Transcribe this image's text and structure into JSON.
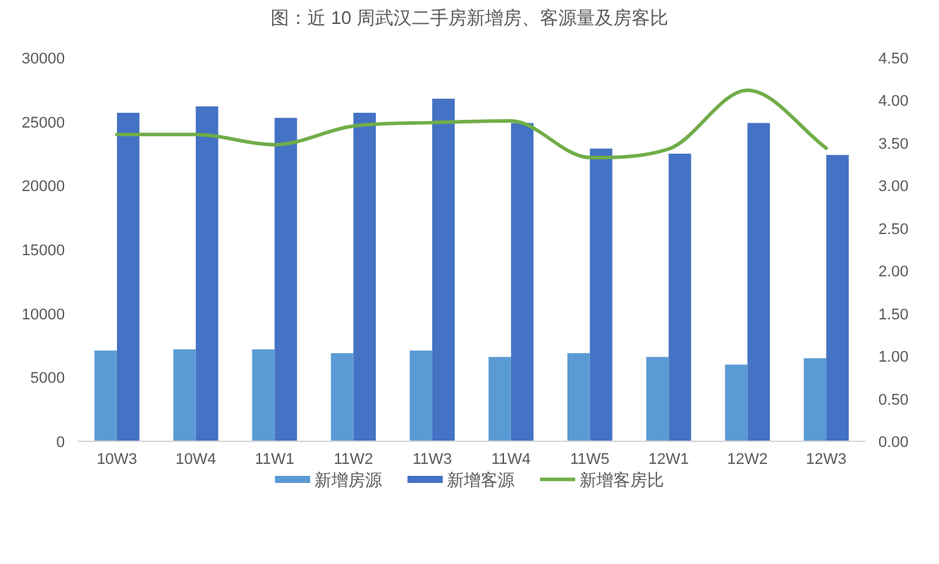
{
  "chart_data": {
    "type": "bar",
    "title": "图：近 10 周武汉二手房新增房、客源量及房客比",
    "categories": [
      "10W3",
      "10W4",
      "11W1",
      "11W2",
      "11W3",
      "11W4",
      "11W5",
      "12W1",
      "12W2",
      "12W3"
    ],
    "series": [
      {
        "name": "新增房源",
        "color": "#5b9bd5",
        "values": [
          7100,
          7200,
          7200,
          6900,
          7100,
          6600,
          6900,
          6600,
          6000,
          6500
        ]
      },
      {
        "name": "新增客源",
        "color": "#4472c4",
        "values": [
          25700,
          26200,
          25300,
          25700,
          26800,
          24900,
          22900,
          22500,
          24900,
          22400
        ]
      },
      {
        "name": "新增客房比",
        "type": "line",
        "axis": "y2",
        "color": "#70ad47",
        "values": [
          3.6,
          3.6,
          3.48,
          3.7,
          3.74,
          3.76,
          3.33,
          3.43,
          4.12,
          3.44
        ]
      }
    ],
    "ylim": [
      0,
      30000
    ],
    "yticks": [
      0,
      5000,
      10000,
      15000,
      20000,
      25000,
      30000
    ],
    "y2lim": [
      0,
      4.5
    ],
    "y2ticks": [
      {
        "value": 0,
        "label": "0.00"
      },
      {
        "value": 0.5,
        "label": "0.50"
      },
      {
        "value": 1,
        "label": "1.00"
      },
      {
        "value": 1.5,
        "label": "1.50"
      },
      {
        "value": 2,
        "label": "2.00"
      },
      {
        "value": 2.5,
        "label": "2.50"
      },
      {
        "value": 3,
        "label": "3.00"
      },
      {
        "value": 3.5,
        "label": "3.50"
      },
      {
        "value": 4,
        "label": "4.00"
      },
      {
        "value": 4.5,
        "label": "4.50"
      }
    ],
    "legend": "bottom"
  }
}
